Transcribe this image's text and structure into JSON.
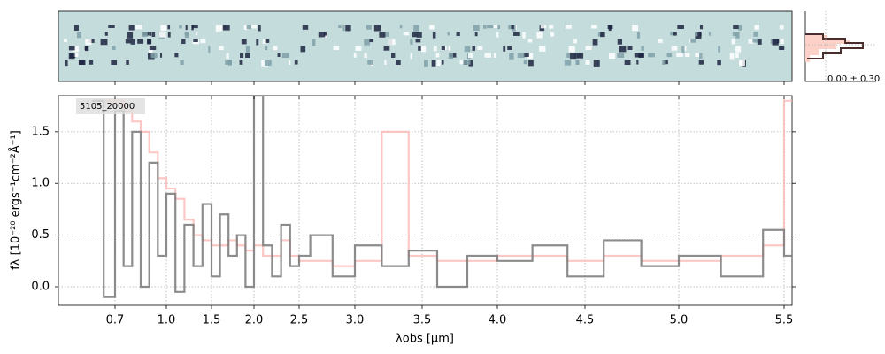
{
  "chart_data": {
    "type": "line",
    "step": true,
    "xlabel": "λobs [μm]",
    "ylabel": "fλ [10⁻²⁰ ergs⁻¹cm⁻²Å⁻¹]",
    "annotation": "5105_20000",
    "hist_label": "0.00 ± 0.30",
    "xlim": [
      0.45,
      5.54
    ],
    "ylim": [
      -0.18,
      1.85
    ],
    "xticks": [
      0.7,
      {
        "value": 1.0,
        "label": "1.0"
      },
      1.5,
      {
        "value": 2.0,
        "label": "2.0"
      },
      2.5,
      {
        "value": 3.0,
        "label": "3.0"
      },
      3.5,
      {
        "value": 4.0,
        "label": "4.0"
      },
      4.5,
      {
        "value": 5.0,
        "label": "5.0"
      },
      5.5
    ],
    "yticks": [
      {
        "value": 0.0,
        "label": "0.0"
      },
      0.5,
      {
        "value": 1.0,
        "label": "1.0"
      },
      1.5
    ],
    "grid": true,
    "x": [
      0.6,
      0.65,
      0.7,
      0.75,
      0.8,
      0.85,
      0.9,
      0.95,
      1.0,
      1.1,
      1.2,
      1.3,
      1.4,
      1.5,
      1.6,
      1.7,
      1.8,
      1.9,
      2.0,
      2.1,
      2.2,
      2.3,
      2.4,
      2.5,
      2.6,
      2.8,
      3.0,
      3.2,
      3.4,
      3.6,
      3.8,
      4.0,
      4.2,
      4.4,
      4.6,
      4.8,
      5.0,
      5.2,
      5.4,
      5.5
    ],
    "series": [
      {
        "color": "#fbb4b0",
        "values": [
          1.8,
          1.8,
          1.8,
          1.7,
          1.6,
          1.5,
          1.3,
          1.05,
          0.95,
          0.85,
          0.65,
          0.5,
          0.45,
          0.4,
          0.4,
          0.45,
          0.4,
          0.35,
          0.4,
          0.3,
          0.3,
          0.45,
          0.3,
          0.25,
          0.25,
          0.2,
          0.25,
          1.5,
          0.3,
          0.25,
          0.25,
          0.3,
          0.3,
          0.25,
          0.3,
          0.25,
          0.25,
          0.3,
          0.4,
          1.8
        ]
      },
      {
        "color": "#808080",
        "values": [
          1.8,
          -0.1,
          1.7,
          0.2,
          1.5,
          0.0,
          1.2,
          0.3,
          0.9,
          -0.05,
          0.6,
          0.2,
          0.8,
          0.1,
          0.7,
          0.3,
          0.5,
          0.0,
          1.85,
          0.4,
          0.1,
          0.6,
          0.2,
          0.3,
          0.5,
          0.1,
          0.4,
          0.2,
          0.35,
          0.0,
          0.3,
          0.25,
          0.4,
          0.1,
          0.45,
          0.2,
          0.3,
          0.1,
          0.55,
          0.3
        ]
      }
    ]
  }
}
